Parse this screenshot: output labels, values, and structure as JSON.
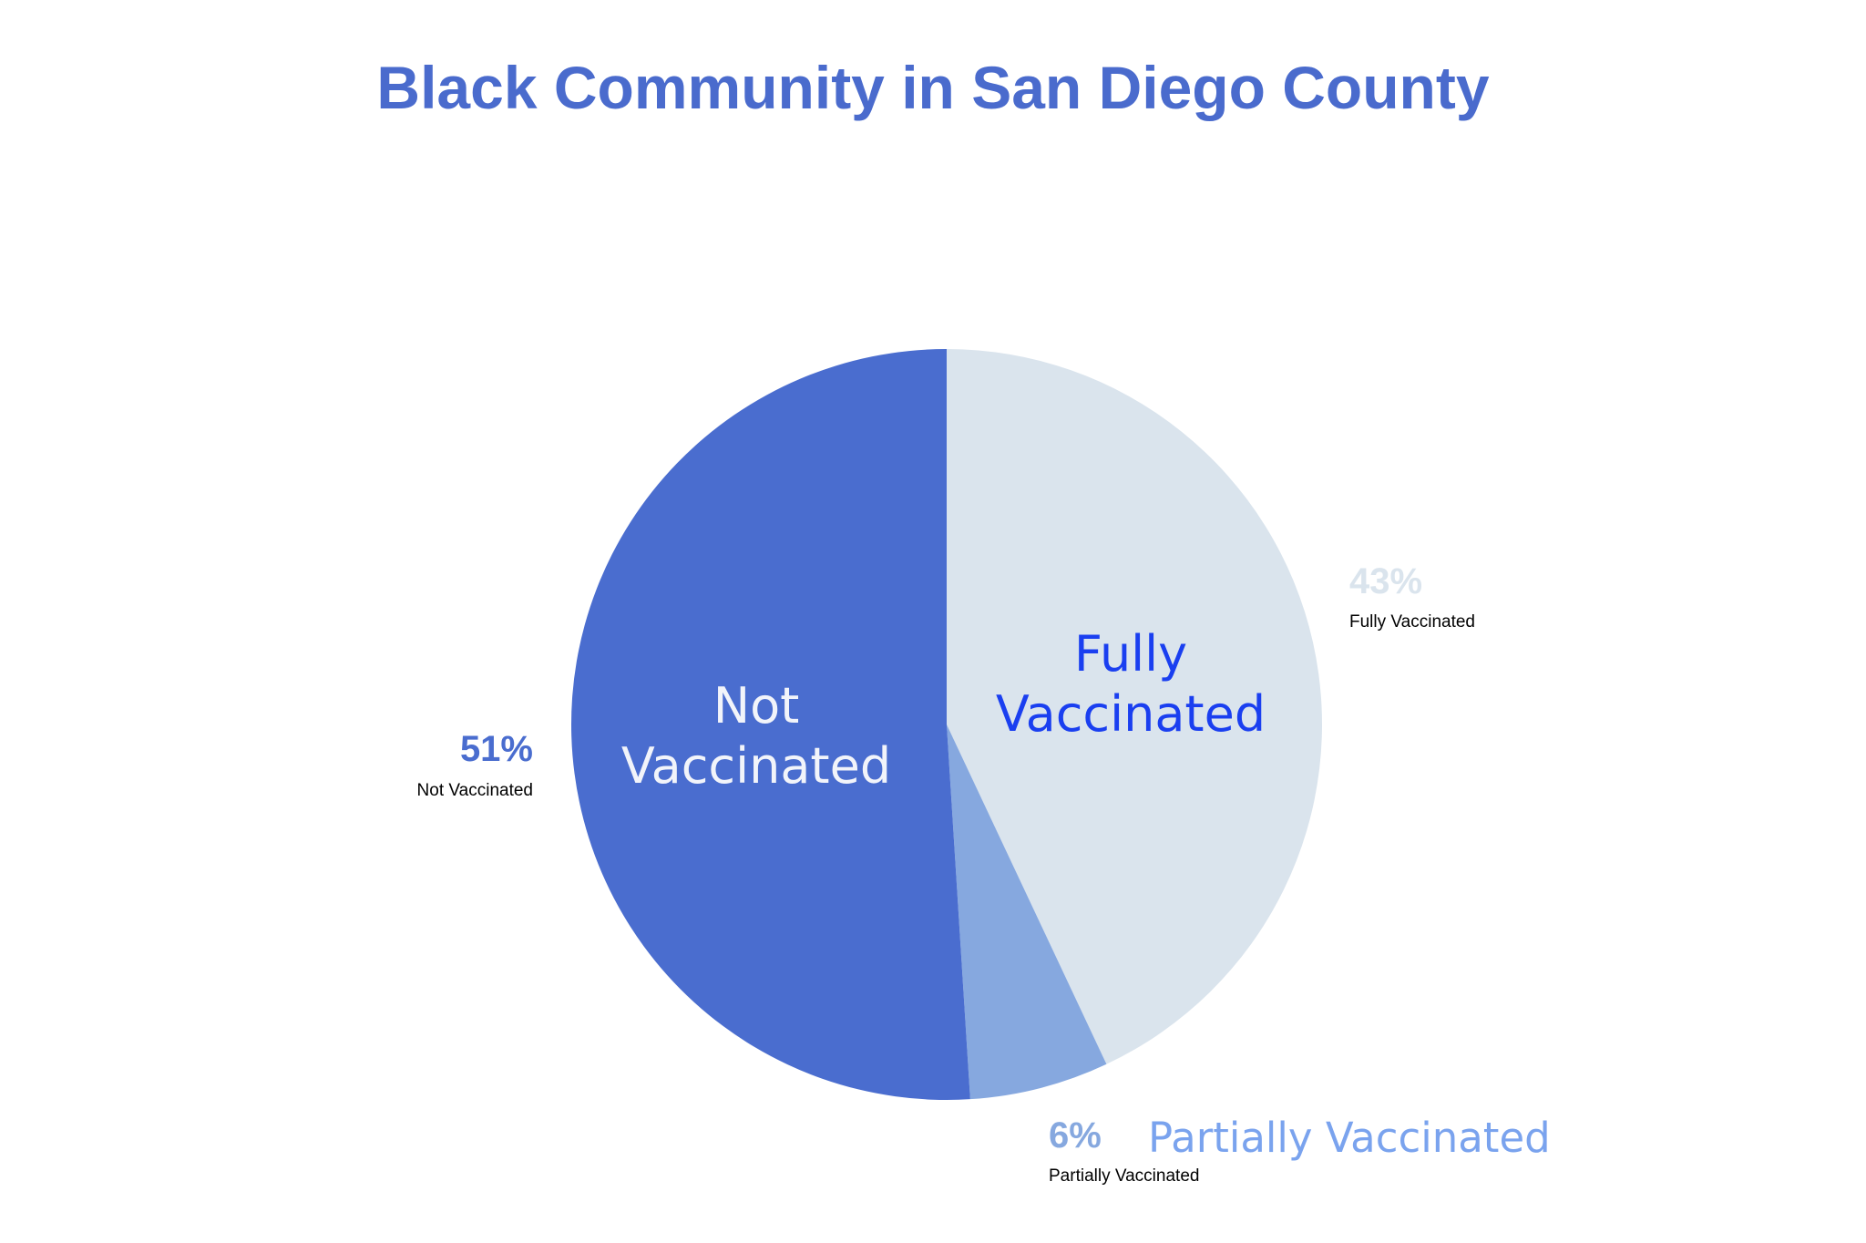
{
  "chart_data": {
    "type": "pie",
    "title": "Black Community in San Diego County",
    "categories": [
      "Fully Vaccinated",
      "Partially Vaccinated",
      "Not Vaccinated"
    ],
    "values": [
      43,
      6,
      51
    ],
    "value_labels": [
      "43%",
      "6%",
      "51%"
    ],
    "colors": [
      "#dae4ed",
      "#86a8df",
      "#4a6dcf"
    ]
  }
}
